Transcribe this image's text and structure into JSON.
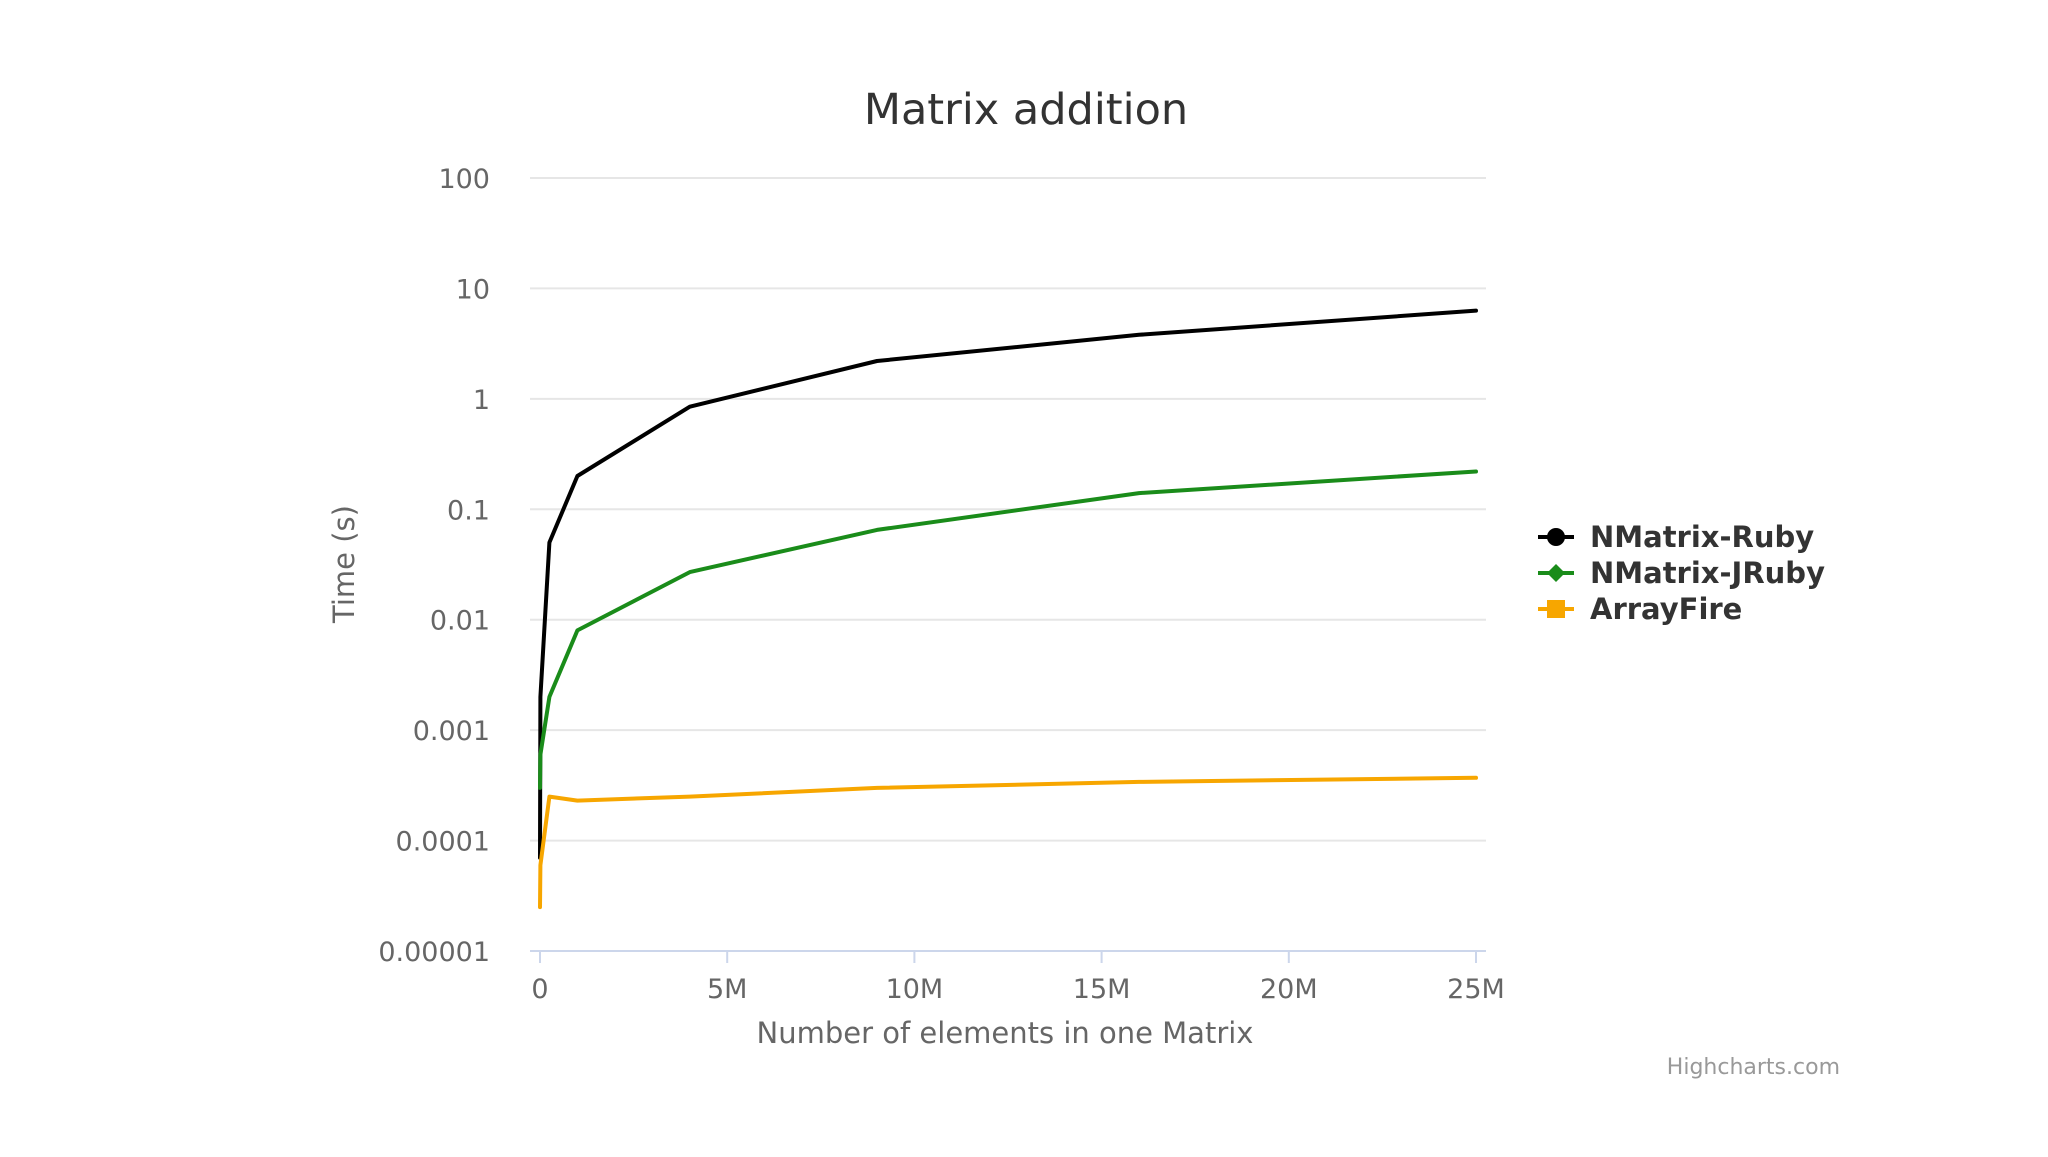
{
  "chart_data": {
    "type": "line",
    "title": "Matrix addition",
    "xlabel": "Number of elements in one Matrix",
    "ylabel": "Time (s)",
    "xlim": [
      0,
      25000000
    ],
    "ylim": [
      1e-05,
      100
    ],
    "y_scale": "log",
    "x_ticks": [
      {
        "value": 0,
        "label": "0"
      },
      {
        "value": 5000000,
        "label": "5M"
      },
      {
        "value": 10000000,
        "label": "10M"
      },
      {
        "value": 15000000,
        "label": "15M"
      },
      {
        "value": 20000000,
        "label": "20M"
      },
      {
        "value": 25000000,
        "label": "25M"
      }
    ],
    "y_ticks": [
      {
        "value": 100,
        "label": "100"
      },
      {
        "value": 10,
        "label": "10"
      },
      {
        "value": 1,
        "label": "1"
      },
      {
        "value": 0.1,
        "label": "0.1"
      },
      {
        "value": 0.01,
        "label": "0.01"
      },
      {
        "value": 0.001,
        "label": "0.001"
      },
      {
        "value": 0.0001,
        "label": "0.0001"
      },
      {
        "value": 1e-05,
        "label": "0.00001"
      }
    ],
    "grid": true,
    "legend_position": "right",
    "series": [
      {
        "name": "NMatrix-Ruby",
        "color": "#000000",
        "marker": "circle",
        "points": [
          [
            0,
            7e-05
          ],
          [
            10000,
            0.002
          ],
          [
            250000,
            0.05
          ],
          [
            1000000,
            0.2
          ],
          [
            4000000,
            0.85
          ],
          [
            9000000,
            2.2
          ],
          [
            16000000,
            3.8
          ],
          [
            25000000,
            6.3
          ]
        ]
      },
      {
        "name": "NMatrix-JRuby",
        "color": "#1a8c1a",
        "marker": "diamond",
        "points": [
          [
            0,
            0.0003
          ],
          [
            10000,
            0.0006
          ],
          [
            250000,
            0.002
          ],
          [
            1000000,
            0.008
          ],
          [
            4000000,
            0.027
          ],
          [
            9000000,
            0.065
          ],
          [
            16000000,
            0.14
          ],
          [
            25000000,
            0.22
          ]
        ]
      },
      {
        "name": "ArrayFire",
        "color": "#f7a600",
        "marker": "square",
        "points": [
          [
            0,
            2.5e-05
          ],
          [
            10000,
            6e-05
          ],
          [
            250000,
            0.00025
          ],
          [
            1000000,
            0.00023
          ],
          [
            4000000,
            0.00025
          ],
          [
            9000000,
            0.0003
          ],
          [
            16000000,
            0.00034
          ],
          [
            25000000,
            0.00037
          ]
        ]
      }
    ],
    "credits": "Highcharts.com"
  }
}
